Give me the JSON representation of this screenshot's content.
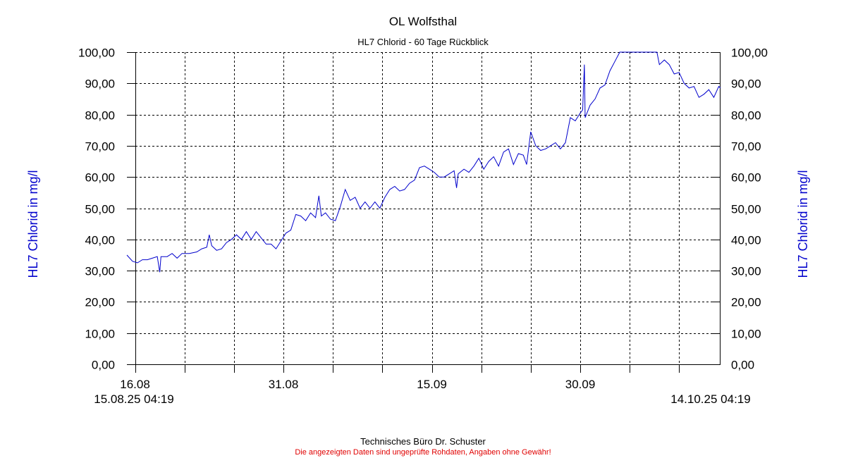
{
  "chart_data": {
    "type": "line",
    "title": "OL Wolfsthal",
    "subtitle": "HL7 Chlorid - 60 Tage Rückblick",
    "ylabel_left": "HL7 Chlorid in mg/l",
    "ylabel_right": "HL7 Chlorid in mg/l",
    "ylim": [
      0,
      100
    ],
    "y_ticks": [
      "0,00",
      "10,00",
      "20,00",
      "30,00",
      "40,00",
      "50,00",
      "60,00",
      "70,00",
      "80,00",
      "90,00",
      "100,00"
    ],
    "x_range": [
      "2025-08-15T04:19",
      "2025-10-14T04:19"
    ],
    "x_tick_labels": [
      {
        "date": "2025-08-16",
        "label": "16.08"
      },
      {
        "date": "2025-08-31",
        "label": "31.08"
      },
      {
        "date": "2025-09-15",
        "label": "15.09"
      },
      {
        "date": "2025-09-30",
        "label": "30.09"
      }
    ],
    "x_start_label": "15.08.25 04:19",
    "x_end_label": "14.10.25 04:19",
    "grid": true,
    "series": [
      {
        "color": "#0000cc",
        "points": [
          [
            "2025-08-15T04:19",
            35.0
          ],
          [
            "2025-08-15T18:00",
            33.0
          ],
          [
            "2025-08-16T06:00",
            32.5
          ],
          [
            "2025-08-16T18:00",
            33.5
          ],
          [
            "2025-08-17T06:00",
            33.5
          ],
          [
            "2025-08-17T18:00",
            34.0
          ],
          [
            "2025-08-18T06:00",
            34.5
          ],
          [
            "2025-08-18T12:00",
            29.5
          ],
          [
            "2025-08-18T15:00",
            34.5
          ],
          [
            "2025-08-19T06:00",
            34.5
          ],
          [
            "2025-08-19T18:00",
            35.5
          ],
          [
            "2025-08-20T06:00",
            34.0
          ],
          [
            "2025-08-20T18:00",
            35.5
          ],
          [
            "2025-08-21T12:00",
            35.5
          ],
          [
            "2025-08-22T06:00",
            36.0
          ],
          [
            "2025-08-22T18:00",
            37.0
          ],
          [
            "2025-08-23T06:00",
            37.5
          ],
          [
            "2025-08-23T12:00",
            41.5
          ],
          [
            "2025-08-23T18:00",
            38.0
          ],
          [
            "2025-08-24T06:00",
            36.5
          ],
          [
            "2025-08-24T18:00",
            37.0
          ],
          [
            "2025-08-25T06:00",
            39.0
          ],
          [
            "2025-08-25T18:00",
            40.0
          ],
          [
            "2025-08-26T06:00",
            41.5
          ],
          [
            "2025-08-26T18:00",
            40.0
          ],
          [
            "2025-08-27T06:00",
            42.5
          ],
          [
            "2025-08-27T18:00",
            40.0
          ],
          [
            "2025-08-28T06:00",
            42.5
          ],
          [
            "2025-08-28T18:00",
            40.5
          ],
          [
            "2025-08-29T06:00",
            38.5
          ],
          [
            "2025-08-29T18:00",
            38.5
          ],
          [
            "2025-08-30T06:00",
            37.0
          ],
          [
            "2025-08-30T18:00",
            39.5
          ],
          [
            "2025-08-31T06:00",
            42.0
          ],
          [
            "2025-08-31T18:00",
            43.0
          ],
          [
            "2025-09-01T06:00",
            48.0
          ],
          [
            "2025-09-01T18:00",
            47.5
          ],
          [
            "2025-09-02T06:00",
            46.0
          ],
          [
            "2025-09-02T18:00",
            48.5
          ],
          [
            "2025-09-03T06:00",
            47.0
          ],
          [
            "2025-09-03T14:00",
            54.0
          ],
          [
            "2025-09-03T20:00",
            47.5
          ],
          [
            "2025-09-04T06:00",
            48.5
          ],
          [
            "2025-09-04T18:00",
            46.5
          ],
          [
            "2025-09-05T06:00",
            46.0
          ],
          [
            "2025-09-05T18:00",
            50.5
          ],
          [
            "2025-09-06T06:00",
            56.0
          ],
          [
            "2025-09-06T18:00",
            52.5
          ],
          [
            "2025-09-07T06:00",
            53.5
          ],
          [
            "2025-09-07T18:00",
            50.0
          ],
          [
            "2025-09-08T06:00",
            52.0
          ],
          [
            "2025-09-08T18:00",
            50.0
          ],
          [
            "2025-09-09T06:00",
            52.0
          ],
          [
            "2025-09-09T18:00",
            50.0
          ],
          [
            "2025-09-10T06:00",
            53.5
          ],
          [
            "2025-09-10T18:00",
            56.0
          ],
          [
            "2025-09-11T06:00",
            57.0
          ],
          [
            "2025-09-11T18:00",
            55.5
          ],
          [
            "2025-09-12T06:00",
            56.0
          ],
          [
            "2025-09-12T18:00",
            58.0
          ],
          [
            "2025-09-13T06:00",
            59.0
          ],
          [
            "2025-09-13T18:00",
            63.0
          ],
          [
            "2025-09-14T06:00",
            63.5
          ],
          [
            "2025-09-14T18:00",
            62.5
          ],
          [
            "2025-09-15T06:00",
            61.5
          ],
          [
            "2025-09-15T18:00",
            60.0
          ],
          [
            "2025-09-16T06:00",
            60.0
          ],
          [
            "2025-09-16T18:00",
            61.0
          ],
          [
            "2025-09-17T06:00",
            62.0
          ],
          [
            "2025-09-17T12:00",
            56.5
          ],
          [
            "2025-09-17T16:00",
            61.0
          ],
          [
            "2025-09-18T06:00",
            62.5
          ],
          [
            "2025-09-18T18:00",
            61.5
          ],
          [
            "2025-09-19T06:00",
            63.5
          ],
          [
            "2025-09-19T18:00",
            66.0
          ],
          [
            "2025-09-20T06:00",
            62.5
          ],
          [
            "2025-09-20T18:00",
            65.0
          ],
          [
            "2025-09-21T06:00",
            66.5
          ],
          [
            "2025-09-21T18:00",
            63.5
          ],
          [
            "2025-09-22T06:00",
            68.0
          ],
          [
            "2025-09-22T18:00",
            69.0
          ],
          [
            "2025-09-23T06:00",
            64.0
          ],
          [
            "2025-09-23T18:00",
            67.5
          ],
          [
            "2025-09-24T06:00",
            67.0
          ],
          [
            "2025-09-24T14:00",
            64.0
          ],
          [
            "2025-09-25T00:00",
            74.5
          ],
          [
            "2025-09-25T12:00",
            70.0
          ],
          [
            "2025-09-26T00:00",
            68.5
          ],
          [
            "2025-09-26T12:00",
            69.0
          ],
          [
            "2025-09-27T00:00",
            70.0
          ],
          [
            "2025-09-27T12:00",
            71.0
          ],
          [
            "2025-09-28T00:00",
            69.0
          ],
          [
            "2025-09-28T12:00",
            71.0
          ],
          [
            "2025-09-29T00:00",
            79.0
          ],
          [
            "2025-09-29T12:00",
            78.0
          ],
          [
            "2025-09-30T00:00",
            80.5
          ],
          [
            "2025-09-30T06:00",
            81.5
          ],
          [
            "2025-09-30T10:00",
            96.0
          ],
          [
            "2025-09-30T12:00",
            79.0
          ],
          [
            "2025-10-01T00:00",
            83.0
          ],
          [
            "2025-10-01T12:00",
            85.0
          ],
          [
            "2025-10-02T00:00",
            88.5
          ],
          [
            "2025-10-02T12:00",
            89.5
          ],
          [
            "2025-10-03T00:00",
            94.0
          ],
          [
            "2025-10-03T12:00",
            97.0
          ],
          [
            "2025-10-04T00:00",
            100.0
          ],
          [
            "2025-10-04T06:00",
            100.0
          ],
          [
            "2025-10-07T18:00",
            100.0
          ],
          [
            "2025-10-08T00:00",
            96.0
          ],
          [
            "2025-10-08T12:00",
            97.5
          ],
          [
            "2025-10-09T00:00",
            96.0
          ],
          [
            "2025-10-09T12:00",
            93.0
          ],
          [
            "2025-10-10T00:00",
            93.5
          ],
          [
            "2025-10-10T12:00",
            90.0
          ],
          [
            "2025-10-11T00:00",
            88.5
          ],
          [
            "2025-10-11T12:00",
            89.0
          ],
          [
            "2025-10-12T00:00",
            85.5
          ],
          [
            "2025-10-12T12:00",
            86.5
          ],
          [
            "2025-10-13T00:00",
            88.0
          ],
          [
            "2025-10-13T12:00",
            85.5
          ],
          [
            "2025-10-14T00:00",
            89.0
          ],
          [
            "2025-10-14T04:19",
            88.5
          ]
        ]
      }
    ]
  },
  "footer": {
    "credit": "Technisches Büro Dr. Schuster",
    "disclaimer": "Die angezeigten Daten sind ungeprüfte Rohdaten, Angaben ohne Gewähr!"
  }
}
